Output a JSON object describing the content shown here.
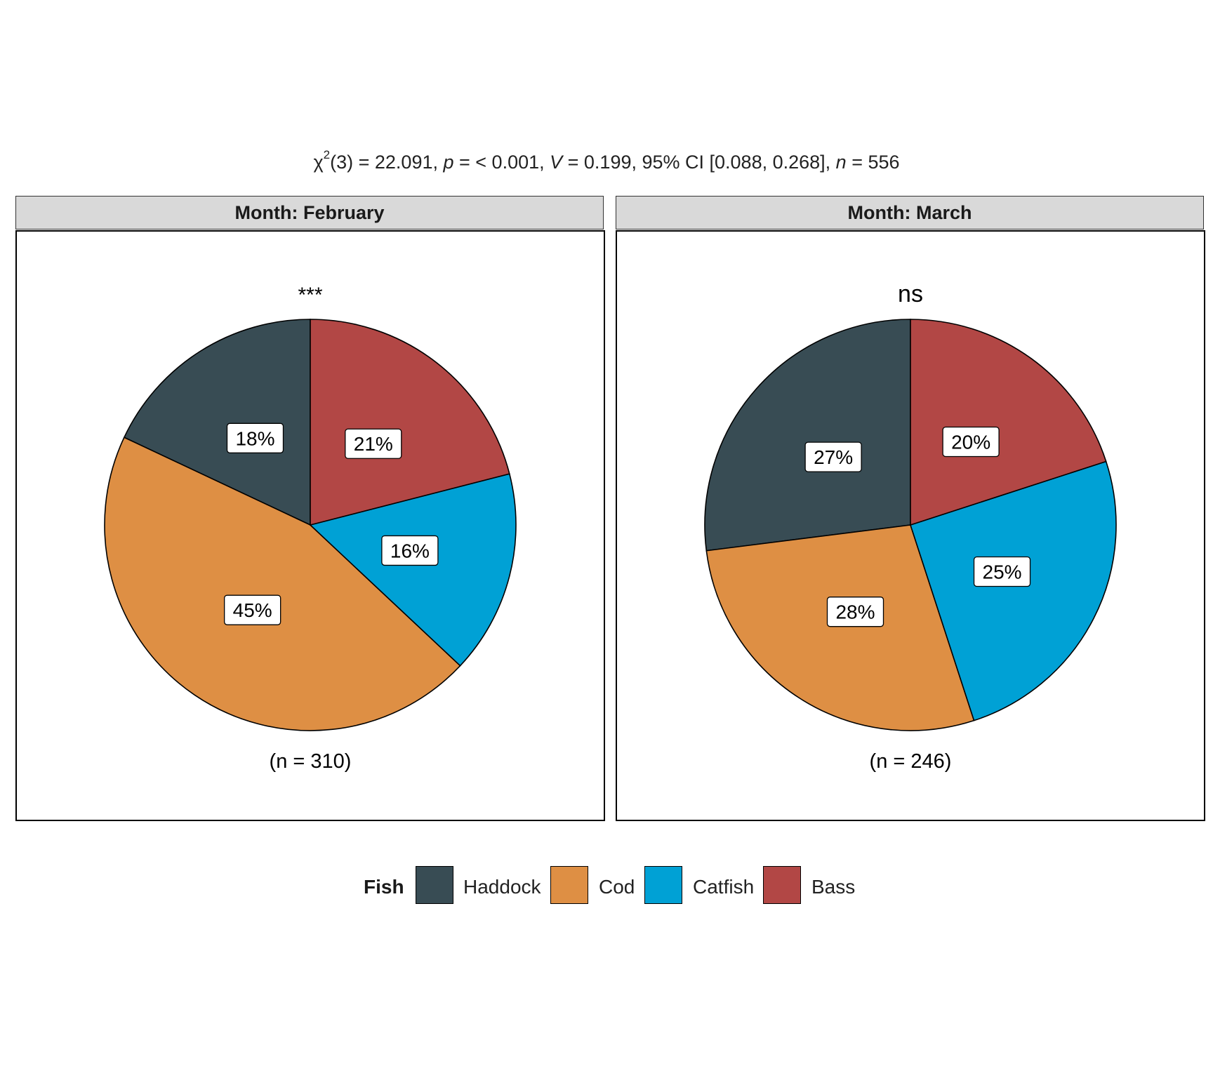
{
  "chart_data": {
    "type": "pie",
    "subtitle": {
      "chi_symbol": "χ",
      "chi_sup": "2",
      "df_text": "(3) = 22.091, ",
      "p_sym": "p",
      "p_text": " = < 0.001, ",
      "v_sym": "V",
      "v_text": " = 0.199, 95% CI [0.088, 0.268], ",
      "n_sym": "n",
      "n_text": " = 556"
    },
    "categories": [
      "Haddock",
      "Cod",
      "Catfish",
      "Bass"
    ],
    "colors": [
      "#384c54",
      "#de8f44",
      "#00a1d5",
      "#b24745"
    ],
    "facets": [
      {
        "strip": "Month: February",
        "significance": "***",
        "n_label": "(n = 310)",
        "values": [
          18,
          45,
          16,
          21
        ],
        "labels": [
          "18%",
          "45%",
          "16%",
          "21%"
        ]
      },
      {
        "strip": "Month: March",
        "significance": "ns",
        "n_label": "(n = 246)",
        "values": [
          27,
          28,
          25,
          20
        ],
        "labels": [
          "27%",
          "28%",
          "25%",
          "20%"
        ]
      }
    ],
    "legend": {
      "title": "Fish",
      "items": [
        "Haddock",
        "Cod",
        "Catfish",
        "Bass"
      ],
      "position": "bottom"
    }
  }
}
